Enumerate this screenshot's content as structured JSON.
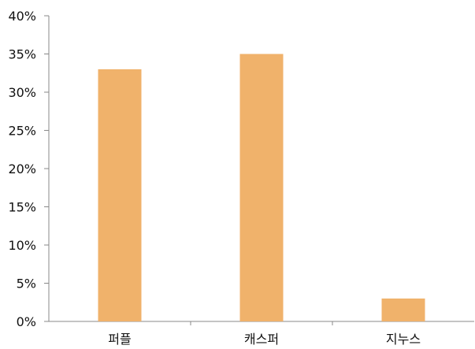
{
  "chart_data": {
    "type": "bar",
    "categories": [
      "퍼플",
      "캐스퍼",
      "지누스"
    ],
    "values": [
      33,
      35,
      3
    ],
    "ylim": [
      0,
      40
    ],
    "ytick_step": 5,
    "ytick_labels": [
      "0%",
      "5%",
      "10%",
      "15%",
      "20%",
      "25%",
      "30%",
      "35%",
      "40%"
    ],
    "grid": false,
    "legend": "none",
    "bar_color": "#F0B26B",
    "axis_color": "#888888"
  }
}
